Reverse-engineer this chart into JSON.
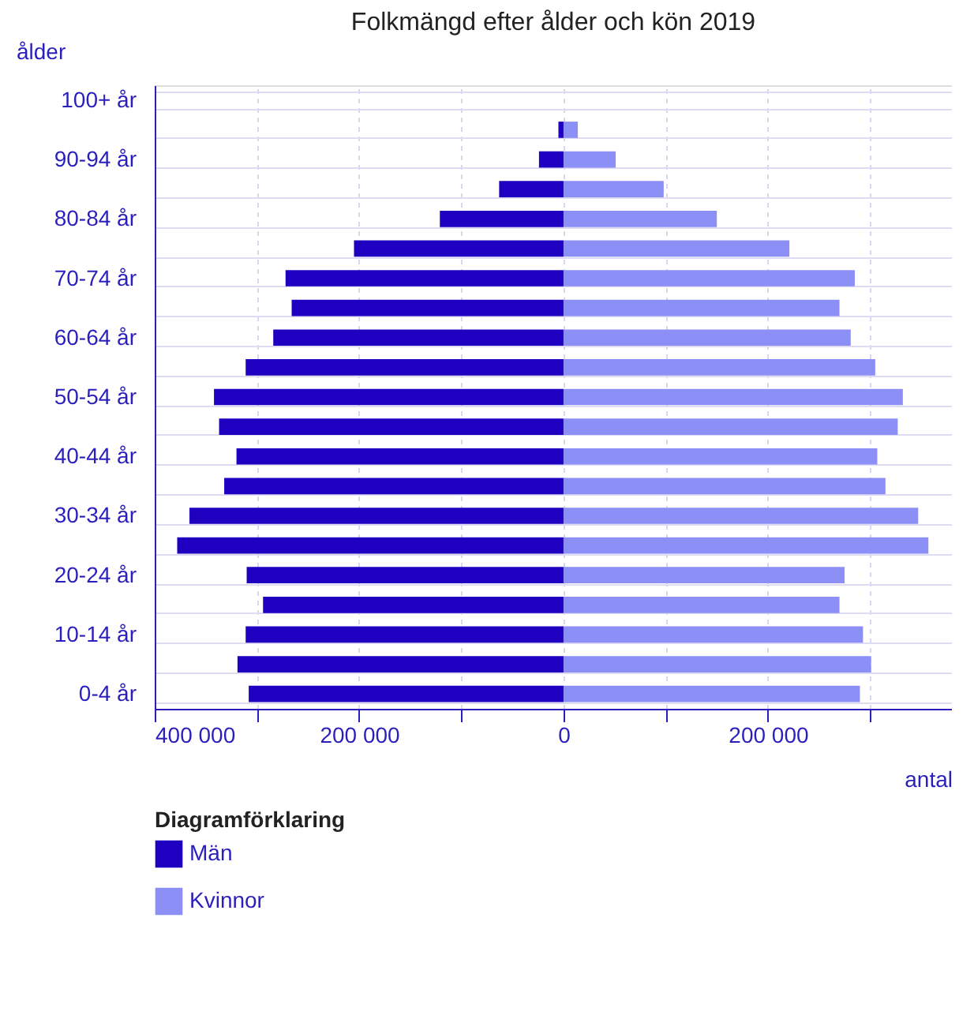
{
  "chart_data": {
    "type": "bar",
    "orientation": "horizontal",
    "title": "Folkmängd efter ålder och kön 2019",
    "ylabel": "ålder",
    "xlabel": "antal",
    "legend_title": "Diagramförklaring",
    "categories": [
      "100+ år",
      null,
      "90-94 år",
      null,
      "80-84 år",
      null,
      "70-74 år",
      null,
      "60-64 år",
      null,
      "50-54 år",
      null,
      "40-44 år",
      null,
      "30-34 år",
      null,
      "20-24 år",
      null,
      "10-14 år",
      null,
      "0-4 år"
    ],
    "series": [
      {
        "name": "Män",
        "color": "#1f00c0",
        "values": [
          0,
          -5000,
          -24000,
          -63000,
          -121000,
          -205000,
          -272000,
          -266000,
          -284000,
          -311000,
          -342000,
          -337000,
          -320000,
          -332000,
          -366000,
          -378000,
          -310000,
          -294000,
          -311000,
          -319000,
          -308000
        ]
      },
      {
        "name": "Kvinnor",
        "color": "#8c8ff5",
        "values": [
          0,
          14000,
          51000,
          98000,
          150000,
          221000,
          285000,
          270000,
          281000,
          305000,
          332000,
          327000,
          307000,
          315000,
          347000,
          357000,
          275000,
          270000,
          293000,
          301000,
          290000
        ]
      }
    ],
    "xlim": [
      -400000,
      380000
    ],
    "xticks": [
      {
        "value": -400000,
        "label": "400 000"
      },
      {
        "value": -300000,
        "label": null
      },
      {
        "value": -200000,
        "label": "200 000"
      },
      {
        "value": -100000,
        "label": null
      },
      0,
      {
        "value": 100000,
        "label": null
      },
      {
        "value": 200000,
        "label": "200 000"
      },
      {
        "value": 300000,
        "label": null
      }
    ],
    "grid": true,
    "legend": "bottom",
    "stacked": true
  }
}
